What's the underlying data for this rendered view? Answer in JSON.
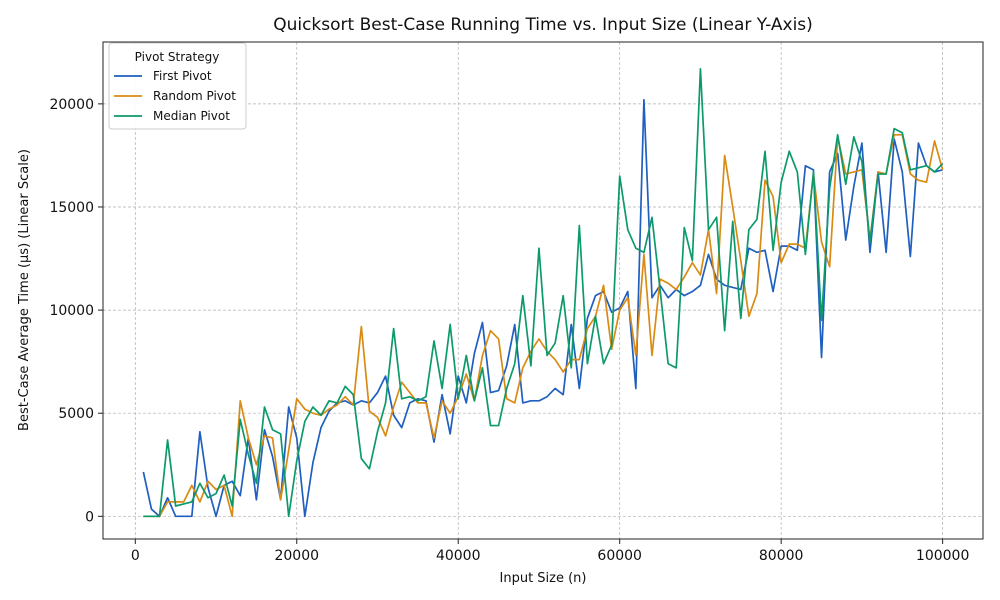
{
  "chart_data": {
    "type": "line",
    "title": "Quicksort Best-Case Running Time vs. Input Size (Linear Y-Axis)",
    "xlabel": "Input Size (n)",
    "ylabel": "Best-Case Average Time (μs) (Linear Scale)",
    "xlim": [
      -4000,
      105000
    ],
    "ylim": [
      -1100,
      23000
    ],
    "x_ticks": [
      0,
      20000,
      40000,
      60000,
      80000,
      100000
    ],
    "y_ticks": [
      0,
      5000,
      10000,
      15000,
      20000
    ],
    "grid": true,
    "legend": {
      "title": "Pivot Strategy",
      "placement": "top-left"
    },
    "x": [
      1000,
      2000,
      3000,
      4000,
      5000,
      6000,
      7000,
      8000,
      9000,
      10000,
      11000,
      12000,
      13000,
      14000,
      15000,
      16000,
      17000,
      18000,
      19000,
      20000,
      21000,
      22000,
      23000,
      24000,
      25000,
      26000,
      27000,
      28000,
      29000,
      30000,
      31000,
      32000,
      33000,
      34000,
      35000,
      36000,
      37000,
      38000,
      39000,
      40000,
      41000,
      42000,
      43000,
      44000,
      45000,
      46000,
      47000,
      48000,
      49000,
      50000,
      51000,
      52000,
      53000,
      54000,
      55000,
      56000,
      57000,
      58000,
      59000,
      60000,
      61000,
      62000,
      63000,
      64000,
      65000,
      66000,
      67000,
      68000,
      69000,
      70000,
      71000,
      72000,
      73000,
      74000,
      75000,
      76000,
      77000,
      78000,
      79000,
      80000,
      81000,
      82000,
      83000,
      84000,
      85000,
      86000,
      87000,
      88000,
      89000,
      90000,
      91000,
      92000,
      93000,
      94000,
      95000,
      96000,
      97000,
      98000,
      99000,
      100000
    ],
    "series": [
      {
        "name": "First Pivot",
        "color": "#1f5fbf",
        "values": [
          2150,
          350,
          0,
          900,
          0,
          0,
          0,
          4100,
          1400,
          0,
          1500,
          1700,
          1000,
          3800,
          800,
          4200,
          2900,
          800,
          5300,
          3800,
          0,
          2600,
          4300,
          5100,
          5500,
          5600,
          5400,
          5600,
          5500,
          6000,
          6800,
          4900,
          4300,
          5500,
          5700,
          5600,
          3600,
          5900,
          4000,
          6800,
          5500,
          7900,
          9400,
          6000,
          6100,
          7300,
          9300,
          5500,
          5600,
          5600,
          5800,
          6200,
          5900,
          9300,
          6200,
          9600,
          10700,
          10900,
          9900,
          10100,
          10900,
          6200,
          20200,
          10600,
          11200,
          10600,
          11000,
          10700,
          10900,
          11200,
          12700,
          11500,
          11200,
          11100,
          11000,
          13000,
          12800,
          12900,
          10900,
          13100,
          13100,
          12900,
          17000,
          16800,
          7700,
          16700,
          17600,
          13400,
          16000,
          18100,
          12800,
          16700,
          12800,
          18300,
          16700,
          12600,
          18100,
          17000,
          16700,
          16800
        ]
      },
      {
        "name": "Random Pivot",
        "color": "#d98b14",
        "values": [
          0,
          0,
          0,
          700,
          700,
          700,
          1500,
          700,
          1700,
          1300,
          1500,
          0,
          5600,
          3800,
          2500,
          3900,
          3800,
          800,
          3200,
          5700,
          5200,
          5000,
          4900,
          5200,
          5400,
          5800,
          5400,
          9200,
          5100,
          4800,
          3900,
          5300,
          6500,
          6000,
          5500,
          5500,
          3800,
          5600,
          5000,
          5800,
          6900,
          5600,
          7800,
          9000,
          8600,
          5700,
          5500,
          7200,
          8000,
          8600,
          8000,
          7600,
          7000,
          7600,
          7600,
          9100,
          9700,
          11200,
          8100,
          10000,
          10600,
          7800,
          12700,
          7800,
          11500,
          11300,
          11000,
          11600,
          12300,
          11700,
          13900,
          10800,
          17500,
          15000,
          12400,
          9700,
          10800,
          16300,
          15500,
          12300,
          13200,
          13200,
          13000,
          16600,
          13300,
          12100,
          18400,
          16600,
          16700,
          16800,
          13400,
          16700,
          16600,
          18500,
          18500,
          16600,
          16300,
          16200,
          18200,
          16800
        ]
      },
      {
        "name": "Median Pivot",
        "color": "#0c9a6b",
        "values": [
          0,
          0,
          0,
          3700,
          500,
          600,
          700,
          1600,
          900,
          1100,
          2000,
          500,
          4700,
          3000,
          1600,
          5300,
          4200,
          4000,
          0,
          2700,
          4600,
          5300,
          4900,
          5600,
          5500,
          6300,
          5900,
          2800,
          2300,
          4100,
          5500,
          9100,
          5700,
          5800,
          5600,
          5800,
          8500,
          6200,
          9300,
          5700,
          7800,
          5600,
          7200,
          4400,
          4400,
          6200,
          7400,
          10700,
          7300,
          13000,
          7800,
          8400,
          10700,
          7200,
          14100,
          7400,
          9700,
          7400,
          8300,
          16500,
          13900,
          13000,
          12800,
          14500,
          11000,
          7400,
          7200,
          14000,
          12400,
          21700,
          13900,
          14500,
          9000,
          14300,
          9600,
          13900,
          14400,
          17700,
          12900,
          16200,
          17700,
          16700,
          12700,
          16700,
          9500,
          15900,
          18500,
          16100,
          18400,
          17200,
          13300,
          16600,
          16600,
          18800,
          18600,
          16800,
          16900,
          17000,
          16700,
          17100
        ]
      }
    ]
  }
}
